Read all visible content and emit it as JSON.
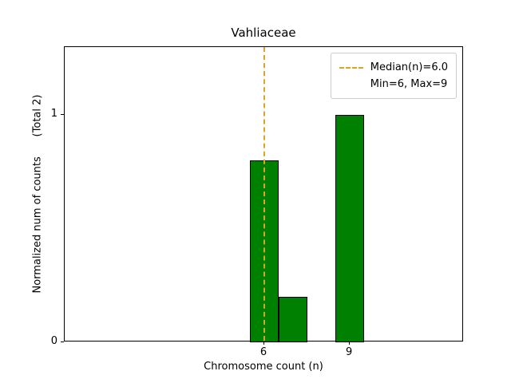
{
  "chart_data": {
    "type": "bar",
    "title": "Vahliaceae",
    "xlabel": "Chromosome count (n)",
    "ylabel": "Normalized num of counts      (Total 2)",
    "x": [
      6,
      7,
      9
    ],
    "values": [
      0.8,
      0.2,
      1.0
    ],
    "bar_width": 1.0,
    "xlim": [
      -1,
      13
    ],
    "ylim": [
      0,
      1.3
    ],
    "xticks": [
      6,
      9
    ],
    "yticks": [
      0,
      1
    ],
    "grid": false,
    "median_line": {
      "x": 6,
      "style": "dashed",
      "color": "#daa520"
    },
    "colors": {
      "bar_fill": "#008000",
      "bar_edge": "#000000"
    },
    "legend": {
      "position": "upper right",
      "entries": [
        {
          "sample": "dashed-line",
          "label": "Median(n)=6.0"
        },
        {
          "sample": "none",
          "label": "Min=6, Max=9"
        }
      ]
    }
  }
}
